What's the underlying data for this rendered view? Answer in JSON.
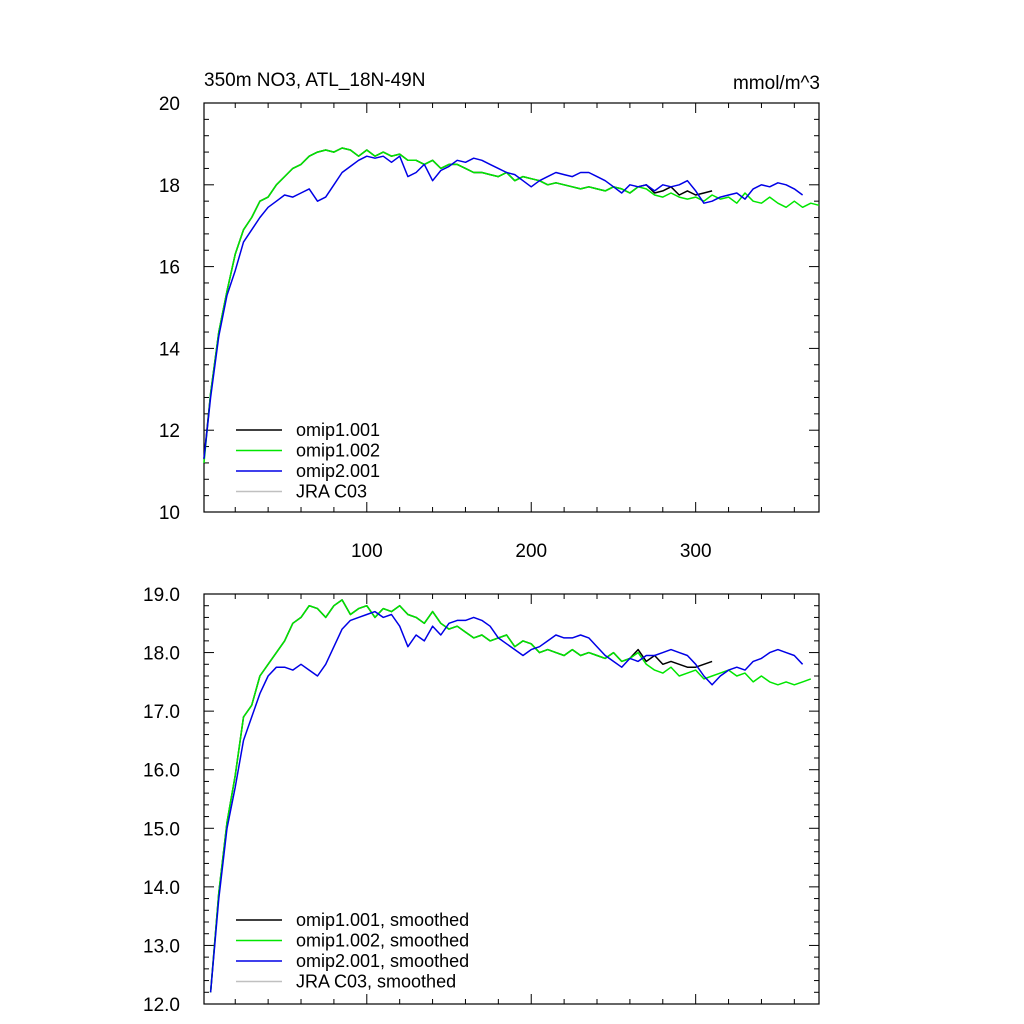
{
  "figure": {
    "title_left": "350m NO3, ATL_18N-49N",
    "title_right": "mmol/m^3"
  },
  "colors": {
    "omip1_001": "#000000",
    "omip1_002": "#00e600",
    "omip2_001": "#0000e6",
    "jra_c03": "#c0c0c0"
  },
  "chart_data": [
    {
      "type": "line",
      "title": "350m NO3, ATL_18N-49N",
      "units": "mmol/m^3",
      "xlim": [
        1,
        375
      ],
      "ylim": [
        10,
        20
      ],
      "x_ticks": [
        100,
        200,
        300
      ],
      "x_tick_labels": [
        "100",
        "200",
        "300"
      ],
      "y_ticks": [
        10,
        12,
        14,
        16,
        18,
        20
      ],
      "y_tick_labels": [
        "10",
        "12",
        "14",
        "16",
        "18",
        "20"
      ],
      "legend_position": "bottom-left",
      "grid": false,
      "series": [
        {
          "name": "omip1.001",
          "color_key": "omip1_001",
          "x": [
            1,
            5,
            10,
            15,
            20,
            25,
            30,
            35,
            40,
            45,
            50,
            55,
            60,
            65,
            70,
            75,
            80,
            85,
            90,
            95,
            100,
            105,
            110,
            115,
            120,
            125,
            130,
            135,
            140,
            145,
            150,
            155,
            160,
            165,
            170,
            175,
            180,
            185,
            190,
            195,
            200,
            205,
            210,
            215,
            220,
            225,
            230,
            235,
            240,
            245,
            250,
            255,
            260,
            265,
            270,
            275,
            280,
            285,
            290,
            295,
            300,
            305,
            310
          ],
          "values": [
            11.3,
            12.9,
            14.4,
            15.4,
            16.3,
            16.9,
            17.2,
            17.6,
            17.7,
            18.0,
            18.2,
            18.4,
            18.5,
            18.7,
            18.8,
            18.85,
            18.8,
            18.9,
            18.85,
            18.7,
            18.85,
            18.7,
            18.8,
            18.7,
            18.75,
            18.6,
            18.6,
            18.5,
            18.6,
            18.4,
            18.5,
            18.5,
            18.4,
            18.3,
            18.3,
            18.25,
            18.2,
            18.3,
            18.1,
            18.2,
            18.15,
            18.1,
            18.0,
            18.05,
            18.0,
            17.95,
            17.9,
            17.95,
            17.9,
            17.85,
            17.95,
            17.9,
            17.8,
            17.95,
            18.0,
            17.8,
            17.85,
            17.95,
            17.75,
            17.85,
            17.75,
            17.8,
            17.85
          ]
        },
        {
          "name": "omip1.002",
          "color_key": "omip1_002",
          "x": [
            1,
            5,
            10,
            15,
            20,
            25,
            30,
            35,
            40,
            45,
            50,
            55,
            60,
            65,
            70,
            75,
            80,
            85,
            90,
            95,
            100,
            105,
            110,
            115,
            120,
            125,
            130,
            135,
            140,
            145,
            150,
            155,
            160,
            165,
            170,
            175,
            180,
            185,
            190,
            195,
            200,
            205,
            210,
            215,
            220,
            225,
            230,
            235,
            240,
            245,
            250,
            255,
            260,
            265,
            270,
            275,
            280,
            285,
            290,
            295,
            300,
            305,
            310,
            315,
            320,
            325,
            330,
            335,
            340,
            345,
            350,
            355,
            360,
            365,
            370,
            375
          ],
          "values": [
            11.2,
            12.9,
            14.4,
            15.4,
            16.3,
            16.9,
            17.2,
            17.6,
            17.7,
            18.0,
            18.2,
            18.4,
            18.5,
            18.7,
            18.8,
            18.85,
            18.8,
            18.9,
            18.85,
            18.7,
            18.85,
            18.7,
            18.8,
            18.7,
            18.75,
            18.6,
            18.6,
            18.5,
            18.6,
            18.4,
            18.5,
            18.5,
            18.4,
            18.3,
            18.3,
            18.25,
            18.2,
            18.3,
            18.1,
            18.2,
            18.15,
            18.1,
            18.0,
            18.05,
            18.0,
            17.95,
            17.9,
            17.95,
            17.9,
            17.85,
            17.95,
            17.9,
            17.8,
            17.95,
            17.9,
            17.75,
            17.7,
            17.8,
            17.7,
            17.65,
            17.7,
            17.6,
            17.75,
            17.65,
            17.7,
            17.55,
            17.8,
            17.6,
            17.55,
            17.7,
            17.55,
            17.45,
            17.6,
            17.45,
            17.55,
            17.5
          ]
        },
        {
          "name": "omip2.001",
          "color_key": "omip2_001",
          "x": [
            1,
            5,
            10,
            15,
            20,
            25,
            30,
            35,
            40,
            45,
            50,
            55,
            60,
            65,
            70,
            75,
            80,
            85,
            90,
            95,
            100,
            105,
            110,
            115,
            120,
            125,
            130,
            135,
            140,
            145,
            150,
            155,
            160,
            165,
            170,
            175,
            180,
            185,
            190,
            195,
            200,
            205,
            210,
            215,
            220,
            225,
            230,
            235,
            240,
            245,
            250,
            255,
            260,
            265,
            270,
            275,
            280,
            285,
            290,
            295,
            300,
            305,
            310,
            315,
            320,
            325,
            330,
            335,
            340,
            345,
            350,
            355,
            360,
            365
          ],
          "values": [
            11.3,
            12.8,
            14.3,
            15.3,
            15.9,
            16.6,
            16.9,
            17.2,
            17.45,
            17.6,
            17.75,
            17.7,
            17.8,
            17.9,
            17.6,
            17.7,
            18.0,
            18.3,
            18.45,
            18.6,
            18.7,
            18.65,
            18.7,
            18.55,
            18.7,
            18.2,
            18.3,
            18.5,
            18.1,
            18.35,
            18.45,
            18.6,
            18.55,
            18.65,
            18.6,
            18.5,
            18.4,
            18.3,
            18.25,
            18.1,
            17.95,
            18.1,
            18.2,
            18.3,
            18.25,
            18.2,
            18.3,
            18.3,
            18.2,
            18.1,
            17.95,
            17.8,
            18.0,
            17.95,
            18.0,
            17.85,
            18.0,
            17.95,
            18.0,
            18.1,
            17.85,
            17.55,
            17.6,
            17.7,
            17.75,
            17.8,
            17.65,
            17.9,
            18.0,
            17.95,
            18.05,
            18.0,
            17.9,
            17.75
          ]
        }
      ]
    },
    {
      "type": "line",
      "xlim": [
        1,
        375
      ],
      "ylim": [
        12.0,
        19.0
      ],
      "y_ticks": [
        12.0,
        13.0,
        14.0,
        15.0,
        16.0,
        17.0,
        18.0,
        19.0
      ],
      "y_tick_labels": [
        "12.0",
        "13.0",
        "14.0",
        "15.0",
        "16.0",
        "17.0",
        "18.0",
        "19.0"
      ],
      "legend_position": "bottom-left",
      "grid": false,
      "series": [
        {
          "name": "omip1.001, smoothed",
          "color_key": "omip1_001",
          "x": [
            5,
            10,
            15,
            20,
            25,
            30,
            35,
            40,
            45,
            50,
            55,
            60,
            65,
            70,
            75,
            80,
            85,
            90,
            95,
            100,
            105,
            110,
            115,
            120,
            125,
            130,
            135,
            140,
            145,
            150,
            155,
            160,
            165,
            170,
            175,
            180,
            185,
            190,
            195,
            200,
            205,
            210,
            215,
            220,
            225,
            230,
            235,
            240,
            245,
            250,
            255,
            260,
            265,
            270,
            275,
            280,
            285,
            290,
            295,
            300,
            305,
            310
          ],
          "values": [
            12.2,
            13.9,
            15.1,
            15.9,
            16.9,
            17.1,
            17.6,
            17.8,
            18.0,
            18.2,
            18.5,
            18.6,
            18.8,
            18.75,
            18.6,
            18.8,
            18.9,
            18.65,
            18.75,
            18.8,
            18.6,
            18.75,
            18.7,
            18.8,
            18.65,
            18.6,
            18.5,
            18.7,
            18.5,
            18.4,
            18.45,
            18.35,
            18.25,
            18.3,
            18.2,
            18.25,
            18.3,
            18.1,
            18.2,
            18.15,
            18.0,
            18.05,
            18.0,
            17.95,
            18.05,
            17.95,
            18.0,
            17.95,
            17.9,
            18.0,
            17.85,
            17.9,
            18.05,
            17.85,
            17.95,
            17.8,
            17.85,
            17.8,
            17.75,
            17.75,
            17.8,
            17.85
          ]
        },
        {
          "name": "omip1.002, smoothed",
          "color_key": "omip1_002",
          "x": [
            5,
            10,
            15,
            20,
            25,
            30,
            35,
            40,
            45,
            50,
            55,
            60,
            65,
            70,
            75,
            80,
            85,
            90,
            95,
            100,
            105,
            110,
            115,
            120,
            125,
            130,
            135,
            140,
            145,
            150,
            155,
            160,
            165,
            170,
            175,
            180,
            185,
            190,
            195,
            200,
            205,
            210,
            215,
            220,
            225,
            230,
            235,
            240,
            245,
            250,
            255,
            260,
            265,
            270,
            275,
            280,
            285,
            290,
            295,
            300,
            305,
            310,
            315,
            320,
            325,
            330,
            335,
            340,
            345,
            350,
            355,
            360,
            365,
            370
          ],
          "values": [
            12.2,
            13.9,
            15.1,
            15.9,
            16.9,
            17.1,
            17.6,
            17.8,
            18.0,
            18.2,
            18.5,
            18.6,
            18.8,
            18.75,
            18.6,
            18.8,
            18.9,
            18.65,
            18.75,
            18.8,
            18.6,
            18.75,
            18.7,
            18.8,
            18.65,
            18.6,
            18.5,
            18.7,
            18.5,
            18.4,
            18.45,
            18.35,
            18.25,
            18.3,
            18.2,
            18.25,
            18.3,
            18.1,
            18.2,
            18.15,
            18.0,
            18.05,
            18.0,
            17.95,
            18.05,
            17.95,
            18.0,
            17.95,
            17.9,
            18.0,
            17.85,
            17.9,
            18.0,
            17.8,
            17.7,
            17.65,
            17.75,
            17.6,
            17.65,
            17.7,
            17.55,
            17.6,
            17.65,
            17.7,
            17.6,
            17.65,
            17.5,
            17.6,
            17.5,
            17.45,
            17.5,
            17.45,
            17.5,
            17.55
          ]
        },
        {
          "name": "omip2.001, smoothed",
          "color_key": "omip2_001",
          "x": [
            5,
            10,
            15,
            20,
            25,
            30,
            35,
            40,
            45,
            50,
            55,
            60,
            65,
            70,
            75,
            80,
            85,
            90,
            95,
            100,
            105,
            110,
            115,
            120,
            125,
            130,
            135,
            140,
            145,
            150,
            155,
            160,
            165,
            170,
            175,
            180,
            185,
            190,
            195,
            200,
            205,
            210,
            215,
            220,
            225,
            230,
            235,
            240,
            245,
            250,
            255,
            260,
            265,
            270,
            275,
            280,
            285,
            290,
            295,
            300,
            305,
            310,
            315,
            320,
            325,
            330,
            335,
            340,
            345,
            350,
            355,
            360,
            365
          ],
          "values": [
            12.2,
            13.8,
            15.0,
            15.7,
            16.5,
            16.9,
            17.3,
            17.6,
            17.75,
            17.75,
            17.7,
            17.8,
            17.7,
            17.6,
            17.8,
            18.1,
            18.4,
            18.55,
            18.6,
            18.65,
            18.7,
            18.6,
            18.65,
            18.45,
            18.1,
            18.3,
            18.2,
            18.45,
            18.3,
            18.5,
            18.55,
            18.55,
            18.6,
            18.55,
            18.45,
            18.25,
            18.15,
            18.05,
            17.95,
            18.05,
            18.1,
            18.2,
            18.3,
            18.25,
            18.25,
            18.3,
            18.25,
            18.1,
            17.95,
            17.85,
            17.75,
            17.9,
            17.85,
            17.95,
            17.95,
            18.0,
            18.05,
            18.0,
            17.95,
            17.8,
            17.6,
            17.45,
            17.6,
            17.7,
            17.75,
            17.7,
            17.85,
            17.9,
            18.0,
            18.05,
            18.0,
            17.95,
            17.8
          ]
        }
      ]
    }
  ],
  "legends": {
    "top": [
      "omip1.001",
      "omip1.002",
      "omip2.001",
      "JRA C03"
    ],
    "bottom": [
      "omip1.001, smoothed",
      "omip1.002, smoothed",
      "omip2.001, smoothed",
      "JRA C03, smoothed"
    ],
    "color_keys": [
      "omip1_001",
      "omip1_002",
      "omip2_001",
      "jra_c03"
    ]
  }
}
